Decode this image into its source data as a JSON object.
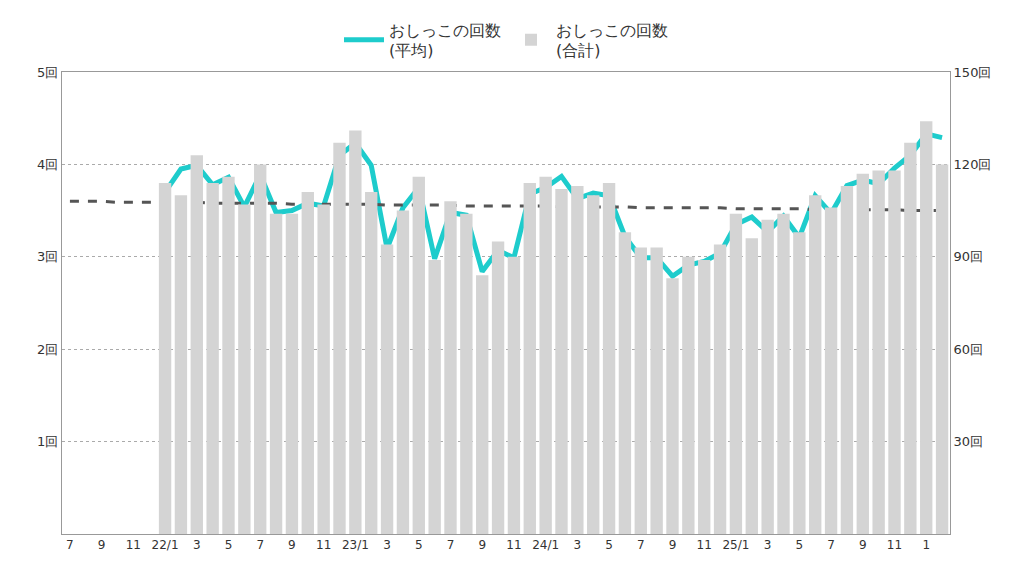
{
  "chart_data": {
    "type": "bar",
    "categories": [
      "7",
      null,
      "9",
      null,
      "11",
      null,
      "22/1",
      null,
      "3",
      null,
      "5",
      null,
      "7",
      null,
      "9",
      null,
      "11",
      null,
      "23/1",
      null,
      "3",
      null,
      "5",
      null,
      "7",
      null,
      "9",
      null,
      "11",
      null,
      "24/1",
      null,
      "3",
      null,
      "5",
      null,
      "7",
      null,
      "9",
      null,
      "11",
      null,
      "25/1",
      null,
      "3",
      null,
      "5",
      null,
      "7",
      null,
      "9",
      null,
      "11",
      null,
      "1",
      null
    ],
    "series": [
      {
        "name": "おしっこの回数\n(平均)",
        "type": "line",
        "color": "#1ecccc",
        "values": [
          null,
          null,
          null,
          null,
          null,
          null,
          3.7,
          3.95,
          3.99,
          3.78,
          3.86,
          3.54,
          3.89,
          3.48,
          3.5,
          3.58,
          3.55,
          4.1,
          4.23,
          3.99,
          3.09,
          3.53,
          3.75,
          2.98,
          3.48,
          3.45,
          2.84,
          3.07,
          2.99,
          3.68,
          3.75,
          3.87,
          3.63,
          3.69,
          3.66,
          3.22,
          2.99,
          2.99,
          2.79,
          2.91,
          2.95,
          3.04,
          3.35,
          3.43,
          3.27,
          3.44,
          3.21,
          3.66,
          3.47,
          3.77,
          3.83,
          3.79,
          3.96,
          4.1,
          4.33,
          4.29
        ]
      },
      {
        "name": "おしっこの回数\n(合計)",
        "type": "bar",
        "color": "#d4d4d4",
        "axis": "y2",
        "values": [
          null,
          null,
          null,
          null,
          null,
          null,
          114,
          110,
          123,
          114,
          116,
          107,
          120,
          104,
          104,
          111,
          107,
          127,
          131,
          111,
          94,
          105,
          116,
          89,
          108,
          104,
          84,
          95,
          90,
          114,
          116,
          112,
          113,
          110,
          114,
          98,
          93,
          93,
          83,
          90,
          89,
          94,
          104,
          96,
          102,
          104,
          98,
          110,
          106,
          113,
          117,
          118,
          118,
          127,
          134,
          120
        ]
      },
      {
        "type": "line",
        "line_style": "dashed",
        "color": "#555555",
        "values": [
          3.6,
          3.6,
          3.6,
          3.59,
          3.59,
          3.59,
          3.59,
          3.59,
          3.59,
          3.58,
          3.58,
          3.58,
          3.58,
          3.58,
          3.57,
          3.57,
          3.57,
          3.57,
          3.57,
          3.57,
          3.56,
          3.56,
          3.56,
          3.56,
          3.56,
          3.55,
          3.55,
          3.55,
          3.55,
          3.55,
          3.55,
          3.54,
          3.54,
          3.54,
          3.54,
          3.54,
          3.53,
          3.53,
          3.53,
          3.53,
          3.53,
          3.53,
          3.52,
          3.52,
          3.52,
          3.52,
          3.52,
          3.51,
          3.51,
          3.51,
          3.51,
          3.51,
          3.51,
          3.5,
          3.5,
          3.5
        ]
      }
    ],
    "ylim": [
      0,
      5
    ],
    "yticks": [
      {
        "value": 1,
        "label": "1回"
      },
      {
        "value": 2,
        "label": "2回"
      },
      {
        "value": 3,
        "label": "3回"
      },
      {
        "value": 4,
        "label": "4回"
      },
      {
        "value": 5,
        "label": "5回"
      }
    ],
    "y2lim": [
      0,
      150
    ],
    "y2ticks": [
      {
        "value": 30,
        "label": "30回"
      },
      {
        "value": 60,
        "label": "60回"
      },
      {
        "value": 90,
        "label": "90回"
      },
      {
        "value": 120,
        "label": "120回"
      },
      {
        "value": 150,
        "label": "150回"
      }
    ],
    "grid": true,
    "legend": "top"
  }
}
